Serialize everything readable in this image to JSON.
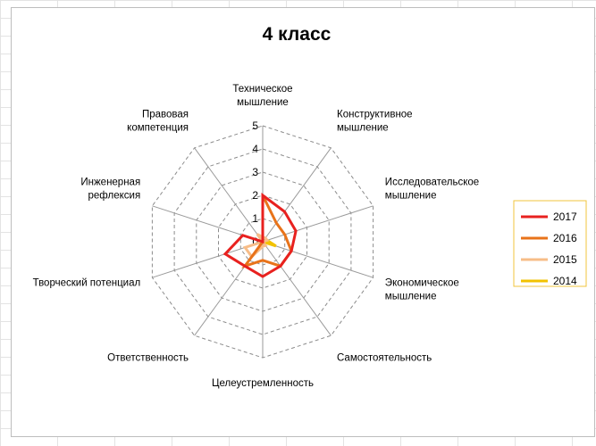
{
  "chart_data": {
    "type": "radar",
    "title": "4 класс",
    "axes": [
      [
        "Техническое",
        "мышление"
      ],
      [
        "Конструктивное",
        "мышление"
      ],
      [
        "Исследовательское",
        "мышление"
      ],
      [
        "Экономическое",
        "мышление"
      ],
      [
        "Самостоятельность"
      ],
      [
        "Целеустремленность"
      ],
      [
        "Ответственность"
      ],
      [
        "Творческий  потенциал"
      ],
      [
        "Инженерная",
        "рефлексия"
      ],
      [
        "Правовая",
        "компетенция"
      ]
    ],
    "rlim": [
      0,
      5
    ],
    "ticks": [
      "0",
      "1",
      "2",
      "3",
      "4",
      "5"
    ],
    "grid": true,
    "legend_position": "right",
    "series": [
      {
        "name": "2017",
        "color": "#e8211f",
        "values": [
          2.0,
          1.6,
          1.5,
          1.3,
          1.3,
          1.5,
          1.3,
          1.7,
          0.9,
          0.0
        ]
      },
      {
        "name": "2016",
        "color": "#e8731a",
        "values": [
          2.0,
          1.0,
          1.0,
          1.3,
          1.3,
          0.8,
          1.3,
          0.0,
          0.0,
          0.0
        ]
      },
      {
        "name": "2015",
        "color": "#f7bd88",
        "values": [
          0.2,
          0.2,
          0.2,
          0.0,
          0.2,
          0.2,
          0.8,
          0.8,
          0.0,
          0.4
        ]
      },
      {
        "name": "2014",
        "color": "#f2c200",
        "values": [
          0.0,
          0.0,
          0.2,
          0.6,
          0.0,
          0.0,
          0.0,
          0.0,
          0.0,
          0.0
        ]
      }
    ]
  }
}
